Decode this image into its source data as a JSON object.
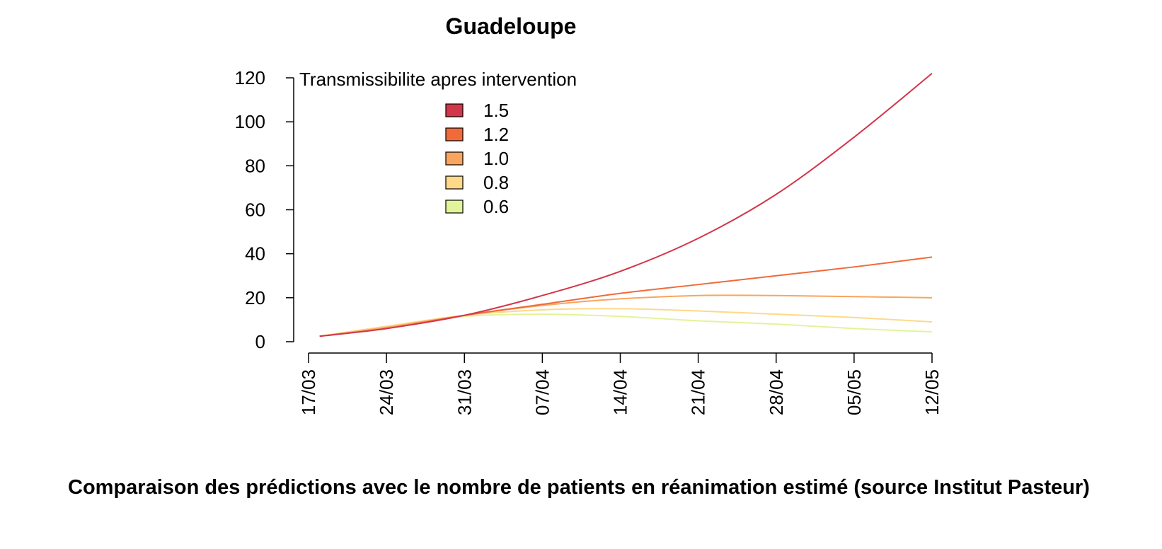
{
  "caption": "Comparaison des prédictions avec le nombre de patients en réanimation estimé (source Institut Pasteur)",
  "chart_data": {
    "type": "line",
    "title": "Guadeloupe",
    "xlabel": "",
    "ylabel": "",
    "x_ticks": [
      "17/03",
      "24/03",
      "31/03",
      "07/04",
      "14/04",
      "21/04",
      "28/04",
      "05/05",
      "12/05"
    ],
    "x_range": [
      "17/03",
      "12/05"
    ],
    "y_ticks": [
      0,
      20,
      40,
      60,
      80,
      100,
      120
    ],
    "ylim": [
      0,
      120
    ],
    "grid": false,
    "legend_title": "Transmissibilite apres intervention",
    "legend_position": "top-left",
    "x": [
      "18/03",
      "24/03",
      "31/03",
      "07/04",
      "14/04",
      "21/04",
      "28/04",
      "05/05",
      "12/05"
    ],
    "series": [
      {
        "name": "1.5",
        "color": "#d2364b",
        "values": [
          2.5,
          6,
          12,
          21,
          32,
          47,
          67,
          93,
          122
        ]
      },
      {
        "name": "1.2",
        "color": "#f06a3a",
        "values": [
          2.5,
          6,
          12,
          17,
          22,
          26,
          30,
          34,
          38.5
        ]
      },
      {
        "name": "1.0",
        "color": "#f9a55d",
        "values": [
          2.5,
          6.5,
          12,
          16.5,
          19.5,
          21,
          21,
          20.5,
          20
        ]
      },
      {
        "name": "0.8",
        "color": "#fdd98a",
        "values": [
          2.5,
          7,
          12,
          14.5,
          15,
          14,
          12.5,
          11,
          9
        ]
      },
      {
        "name": "0.6",
        "color": "#e3f39a",
        "values": [
          2.5,
          7,
          11.5,
          12.5,
          11.5,
          9.5,
          8,
          6,
          4.5
        ]
      }
    ]
  }
}
